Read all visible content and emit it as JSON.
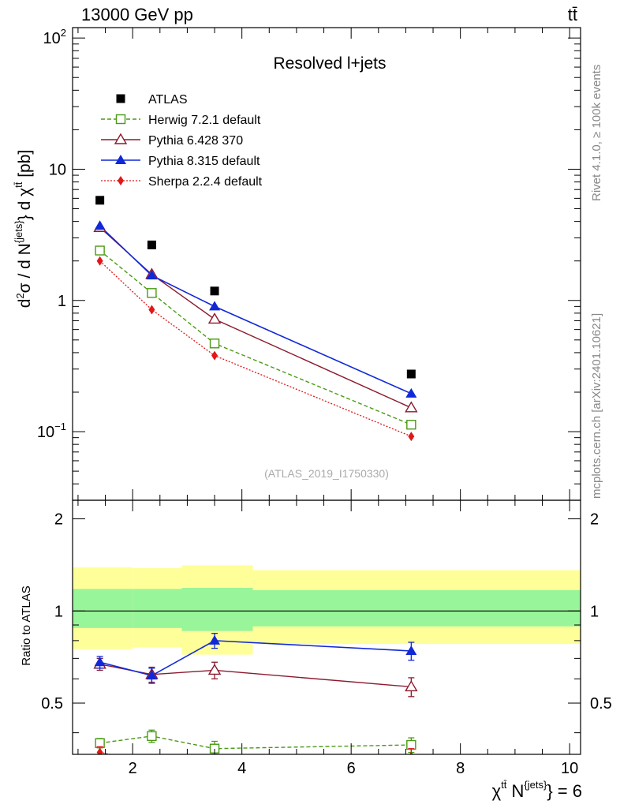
{
  "header": {
    "energy": "13000 GeV pp",
    "process": "tt̄"
  },
  "side_labels": {
    "rivet": "Rivet 4.1.0, ≥ 100k events",
    "source": "mcplots.cern.ch [arXiv:2401.10621]"
  },
  "chart_data": {
    "type": "line",
    "title": "Resolved l+jets",
    "analysis_id": "(ATLAS_2019_I1750330)",
    "ylabel": "d²σ / d N^{jets} d χ^{tt̄} [pb]",
    "ratio_ylabel": "Ratio to ATLAS",
    "xlabel": "χ^{tt̄} N^{jets} = 6",
    "xlim": [
      0.9,
      10.2
    ],
    "ylim": [
      0.03,
      120
    ],
    "ratio_ylim": [
      0.34,
      2.3
    ],
    "x_ticks": [
      "2",
      "4",
      "6",
      "8",
      "10"
    ],
    "y_ticks": [
      "10^-1",
      "1",
      "10",
      "10^2"
    ],
    "ratio_ticks": [
      "0.5",
      "1",
      "2"
    ],
    "x": [
      1.4,
      2.35,
      3.5,
      7.1
    ],
    "bins": [
      [
        0.9,
        2.0
      ],
      [
        2.0,
        2.9
      ],
      [
        2.9,
        4.2
      ],
      [
        4.2,
        10.2
      ]
    ],
    "data": {
      "name": "ATLAS",
      "values": [
        5.8,
        2.65,
        1.18,
        0.275
      ]
    },
    "bands": {
      "inner": [
        [
          0.88,
          1.18
        ],
        [
          0.88,
          1.18
        ],
        [
          0.86,
          1.19
        ],
        [
          0.89,
          1.17
        ]
      ],
      "outer": [
        [
          0.75,
          1.39
        ],
        [
          0.76,
          1.38
        ],
        [
          0.72,
          1.41
        ],
        [
          0.78,
          1.36
        ]
      ]
    },
    "series": [
      {
        "name": "Herwig 7.2.1 default",
        "color": "#4a9a14",
        "values": [
          2.4,
          1.14,
          0.47,
          0.113
        ],
        "ratio": [
          0.37,
          0.39,
          0.355,
          0.365
        ],
        "ratio_err": [
          0.013,
          0.018,
          0.02,
          0.02
        ]
      },
      {
        "name": "Pythia 6.428 370",
        "color": "#8b1a2e",
        "values": [
          3.6,
          1.58,
          0.72,
          0.152
        ],
        "ratio": [
          0.67,
          0.62,
          0.64,
          0.565
        ],
        "ratio_err": [
          0.03,
          0.035,
          0.04,
          0.04
        ]
      },
      {
        "name": "Pythia 8.315 default",
        "color": "#1028d8",
        "values": [
          3.7,
          1.55,
          0.9,
          0.195
        ],
        "ratio": [
          0.68,
          0.615,
          0.8,
          0.74
        ],
        "ratio_err": [
          0.03,
          0.035,
          0.045,
          0.05
        ]
      },
      {
        "name": "Sherpa 2.2.4 default",
        "color": "#e01818",
        "values": [
          2.0,
          0.85,
          0.38,
          0.092
        ],
        "ratio": [
          0.345,
          0.32,
          0.32,
          0.335
        ],
        "ratio_err": [
          0.015,
          0.015,
          0.02,
          0.02
        ]
      }
    ]
  }
}
